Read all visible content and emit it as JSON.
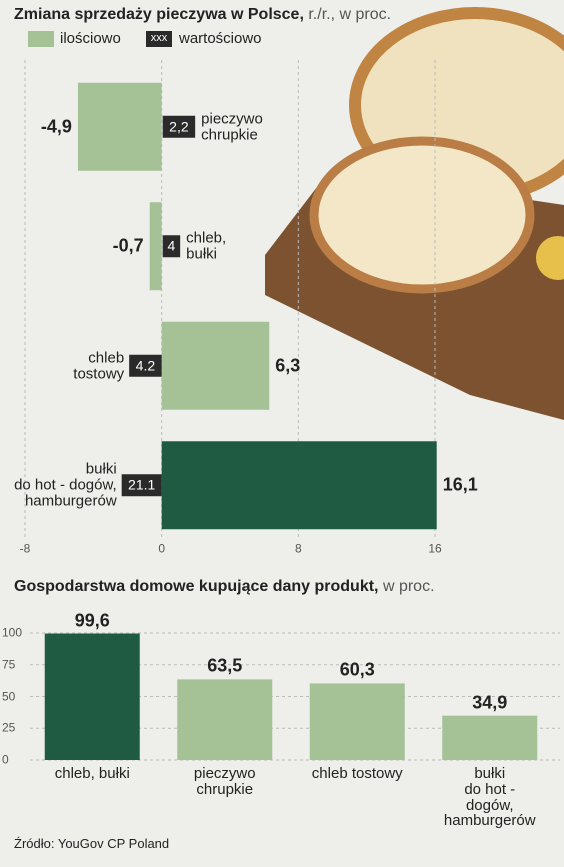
{
  "chart_data": [
    {
      "type": "barh",
      "title": "Zmiana sprzedaży pieczywa w Polsce,",
      "subtitle": "r./r., w proc.",
      "categories": [
        "pieczywo\nchrupkie",
        "chleb,\nbułki",
        "chleb\ntostowy",
        "bułki\ndo hot - dogów,\nhamburgerów"
      ],
      "series": [
        {
          "name": "ilościowo",
          "color": "#a5c196",
          "colors": [
            "#a5c196",
            "#a5c196",
            "#a5c196",
            "#1f5b43"
          ],
          "values": [
            -4.9,
            -0.7,
            6.3,
            16.1
          ],
          "value_labels": [
            "-4,9",
            "-0,7",
            "6,3",
            "16,1"
          ]
        },
        {
          "name": "wartościowo",
          "color": "#2a2a2a",
          "legend_sample": "xxx",
          "values": [
            2.2,
            4,
            4.2,
            21.1
          ],
          "value_labels": [
            "2,2",
            "4",
            "4.2",
            "21.1"
          ]
        }
      ],
      "xlim": [
        -8,
        16
      ],
      "xticks": [
        -8,
        0,
        8,
        16
      ],
      "grid": true
    },
    {
      "type": "bar",
      "title": "Gospodarstwa domowe kupujące dany produkt,",
      "subtitle": "w proc.",
      "categories": [
        "chleb, bułki",
        "pieczywo\nchrupkie",
        "chleb tostowy",
        "bułki\ndo hot - dogów,\nhamburgerów"
      ],
      "values": [
        99.6,
        63.5,
        60.3,
        34.9
      ],
      "value_labels": [
        "99,6",
        "63,5",
        "60,3",
        "34,9"
      ],
      "colors": [
        "#1f5b43",
        "#a5c196",
        "#a5c196",
        "#a5c196"
      ],
      "ylim": [
        0,
        100
      ],
      "yticks": [
        0,
        25,
        50,
        75,
        100
      ],
      "grid": true
    }
  ],
  "source": "Źródło: YouGov CP Poland"
}
